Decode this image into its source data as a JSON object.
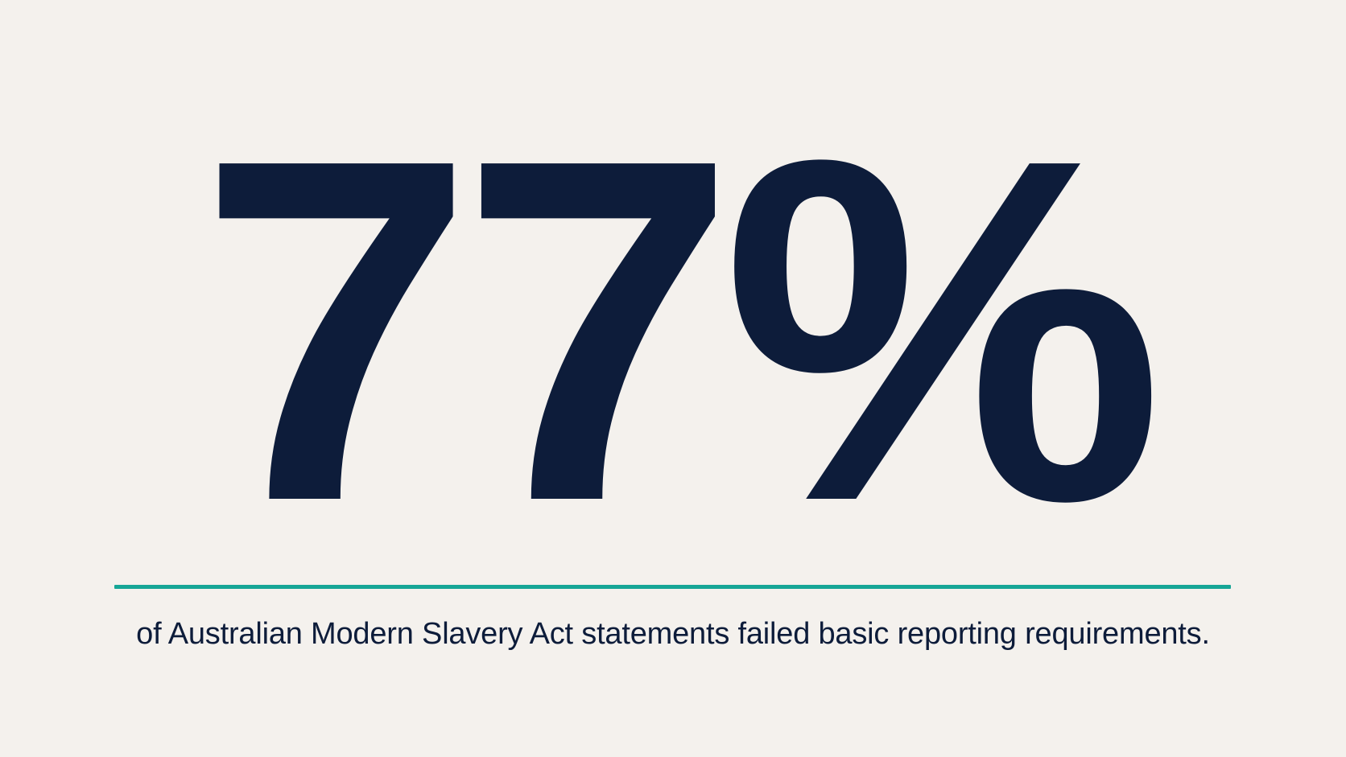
{
  "hero": {
    "statistic": "77%",
    "caption": "of Australian Modern Slavery Act statements failed basic reporting requirements."
  },
  "colors": {
    "background": "#f4f1ed",
    "text": "#0d1c3a",
    "accent_rule": "#16a696"
  }
}
